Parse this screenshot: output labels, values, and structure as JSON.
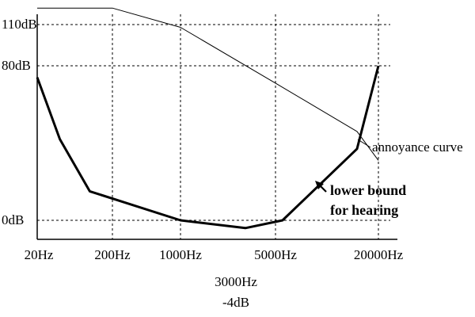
{
  "chart_data": {
    "type": "line",
    "x_ticks": [
      "20Hz",
      "200Hz",
      "1000Hz",
      "5000Hz",
      "20000Hz"
    ],
    "y_ticks": [
      "110dB",
      "80dB",
      "0dB"
    ],
    "series": [
      {
        "name": "lower bound for hearing",
        "style": "thick",
        "points": [
          [
            "20Hz",
            74
          ],
          [
            "40Hz",
            42
          ],
          [
            "100Hz",
            15
          ],
          [
            "1000Hz",
            0
          ],
          [
            "3000Hz",
            -4
          ],
          [
            "5500Hz",
            0
          ],
          [
            "15000Hz",
            37
          ],
          [
            "20000Hz",
            80
          ]
        ]
      },
      {
        "name": "annoyance curve",
        "style": "thin",
        "points": [
          [
            "20Hz",
            122
          ],
          [
            "200Hz",
            122
          ],
          [
            "1000Hz",
            108
          ],
          [
            "5000Hz",
            71
          ],
          [
            "15000Hz",
            46
          ],
          [
            "20000Hz",
            31
          ]
        ]
      }
    ],
    "annotations": {
      "annoyance": "annoyance curve",
      "lower_bound_line1": "lower bound",
      "lower_bound_line2": "for hearing",
      "min_freq": "3000Hz",
      "min_level": "-4dB"
    },
    "grid": "dashed at labeled ticks"
  }
}
